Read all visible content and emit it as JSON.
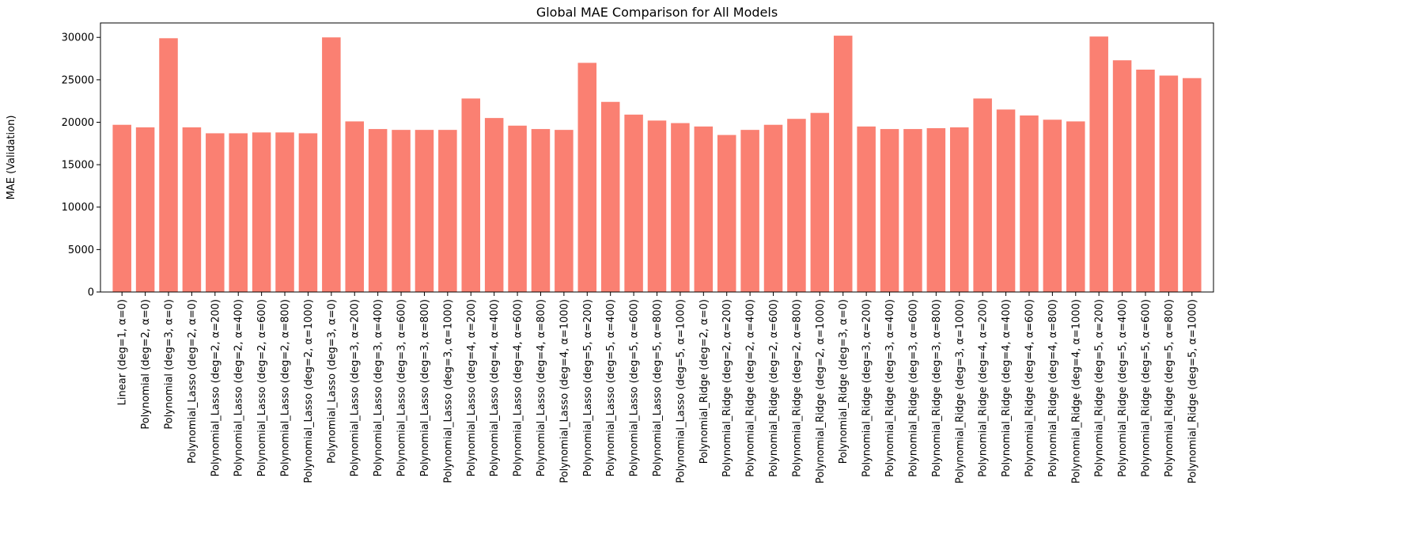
{
  "chart_data": {
    "type": "bar",
    "title": "Global MAE Comparison for All Models",
    "xlabel": "",
    "ylabel": "MAE (Validation)",
    "ylim": [
      0,
      31700
    ],
    "yticks": [
      0,
      5000,
      10000,
      15000,
      20000,
      25000,
      30000
    ],
    "grid": false,
    "bar_color": "#FA8072",
    "categories": [
      "Linear (deg=1, α=0)",
      "Polynomial (deg=2, α=0)",
      "Polynomial (deg=3, α=0)",
      "Polynomial_Lasso (deg=2, α=0)",
      "Polynomial_Lasso (deg=2, α=200)",
      "Polynomial_Lasso (deg=2, α=400)",
      "Polynomial_Lasso (deg=2, α=600)",
      "Polynomial_Lasso (deg=2, α=800)",
      "Polynomial_Lasso (deg=2, α=1000)",
      "Polynomial_Lasso (deg=3, α=0)",
      "Polynomial_Lasso (deg=3, α=200)",
      "Polynomial_Lasso (deg=3, α=400)",
      "Polynomial_Lasso (deg=3, α=600)",
      "Polynomial_Lasso (deg=3, α=800)",
      "Polynomial_Lasso (deg=3, α=1000)",
      "Polynomial_Lasso (deg=4, α=200)",
      "Polynomial_Lasso (deg=4, α=400)",
      "Polynomial_Lasso (deg=4, α=600)",
      "Polynomial_Lasso (deg=4, α=800)",
      "Polynomial_Lasso (deg=4, α=1000)",
      "Polynomial_Lasso (deg=5, α=200)",
      "Polynomial_Lasso (deg=5, α=400)",
      "Polynomial_Lasso (deg=5, α=600)",
      "Polynomial_Lasso (deg=5, α=800)",
      "Polynomial_Lasso (deg=5, α=1000)",
      "Polynomial_Ridge (deg=2, α=0)",
      "Polynomial_Ridge (deg=2, α=200)",
      "Polynomial_Ridge (deg=2, α=400)",
      "Polynomial_Ridge (deg=2, α=600)",
      "Polynomial_Ridge (deg=2, α=800)",
      "Polynomial_Ridge (deg=2, α=1000)",
      "Polynomial_Ridge (deg=3, α=0)",
      "Polynomial_Ridge (deg=3, α=200)",
      "Polynomial_Ridge (deg=3, α=400)",
      "Polynomial_Ridge (deg=3, α=600)",
      "Polynomial_Ridge (deg=3, α=800)",
      "Polynomial_Ridge (deg=3, α=1000)",
      "Polynomial_Ridge (deg=4, α=200)",
      "Polynomial_Ridge (deg=4, α=400)",
      "Polynomial_Ridge (deg=4, α=600)",
      "Polynomial_Ridge (deg=4, α=800)",
      "Polynomial_Ridge (deg=4, α=1000)",
      "Polynomial_Ridge (deg=5, α=200)",
      "Polynomial_Ridge (deg=5, α=400)",
      "Polynomial_Ridge (deg=5, α=600)",
      "Polynomial_Ridge (deg=5, α=800)",
      "Polynomial_Ridge (deg=5, α=1000)"
    ],
    "values": [
      19700,
      19400,
      29900,
      19400,
      18700,
      18700,
      18800,
      18800,
      18700,
      30000,
      20100,
      19200,
      19100,
      19100,
      19100,
      22800,
      20500,
      19600,
      19200,
      19100,
      27000,
      22400,
      20900,
      20200,
      19900,
      19500,
      18500,
      19100,
      19700,
      20400,
      21100,
      30200,
      19500,
      19200,
      19200,
      19300,
      19400,
      22800,
      21500,
      20800,
      20300,
      20100,
      30100,
      27300,
      26200,
      25500,
      25200
    ]
  }
}
